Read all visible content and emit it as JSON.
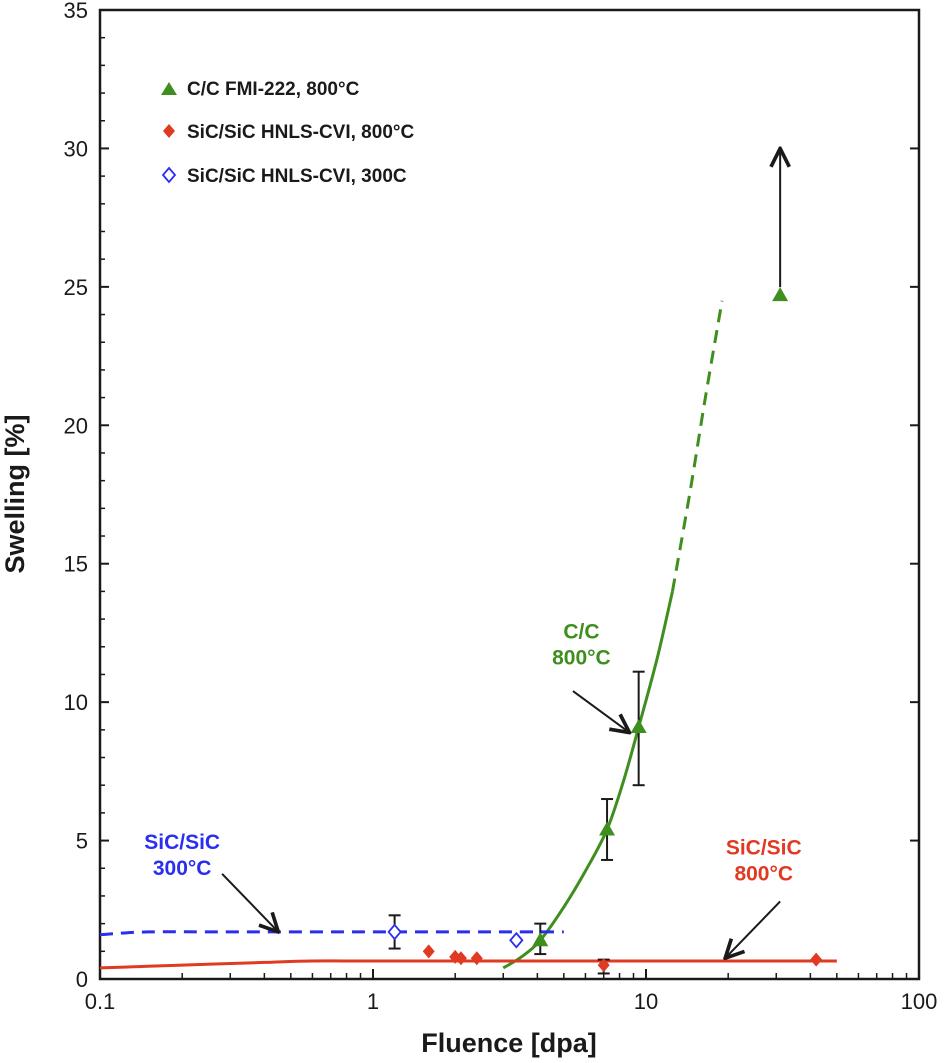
{
  "chart_data": {
    "type": "scatter",
    "x_scale": "log",
    "xlim": [
      0.1,
      100
    ],
    "ylim": [
      0,
      35
    ],
    "xlabel": "Fluence [dpa]",
    "ylabel": "Swelling [%]",
    "x_ticks": [
      0.1,
      1,
      10,
      100
    ],
    "x_tick_labels": [
      "0.1",
      "1",
      "10",
      "100"
    ],
    "y_ticks": [
      0,
      5,
      10,
      15,
      20,
      25,
      30,
      35
    ],
    "y_tick_labels": [
      "0",
      "5",
      "10",
      "15",
      "20",
      "25",
      "30",
      "35"
    ],
    "legend_position": "top-left",
    "colors": {
      "cc": "#3f8f1e",
      "sic800": "#e03a22",
      "sic300": "#2a2ef0",
      "ink": "#1a1a1a"
    },
    "series": [
      {
        "name": "C/C FMI-222, 800°C",
        "marker": "filled-triangle",
        "color": "#3f8f1e",
        "points": [
          {
            "x": 4.1,
            "y": 1.4,
            "err_low": 0.9,
            "err_high": 2.0
          },
          {
            "x": 7.2,
            "y": 5.4,
            "err_low": 4.3,
            "err_high": 6.5
          },
          {
            "x": 9.4,
            "y": 9.1,
            "err_low": 7.0,
            "err_high": 11.1
          },
          {
            "x": 31,
            "y": 24.7,
            "arrow_up_to": 30.0
          }
        ]
      },
      {
        "name": "SiC/SiC HNLS-CVI, 800°C",
        "marker": "filled-diamond",
        "color": "#e03a22",
        "points": [
          {
            "x": 1.6,
            "y": 1.0
          },
          {
            "x": 2.0,
            "y": 0.8
          },
          {
            "x": 2.1,
            "y": 0.75
          },
          {
            "x": 2.4,
            "y": 0.75
          },
          {
            "x": 7.0,
            "y": 0.5,
            "err_low": 0.2,
            "err_high": 0.7
          },
          {
            "x": 42,
            "y": 0.7
          }
        ]
      },
      {
        "name": "SiC/SiC HNLS-CVI, 300C",
        "marker": "open-diamond",
        "color": "#2a2ef0",
        "points": [
          {
            "x": 1.2,
            "y": 1.7,
            "err_low": 1.1,
            "err_high": 2.3
          },
          {
            "x": 3.35,
            "y": 1.4
          }
        ]
      }
    ],
    "trend_lines": [
      {
        "name": "C/C trend",
        "color": "#3f8f1e",
        "style": "solid",
        "x": [
          3.0,
          3.5,
          4.1,
          5.0,
          6.0,
          7.2,
          8.3,
          9.4,
          11.0,
          12.5
        ],
        "y": [
          0.4,
          0.8,
          1.4,
          2.6,
          3.9,
          5.4,
          7.2,
          9.1,
          11.6,
          14.0
        ]
      },
      {
        "name": "C/C extrapolation",
        "color": "#3f8f1e",
        "style": "dashed",
        "x": [
          12.5,
          14.5,
          16.5,
          19.0
        ],
        "y": [
          14.0,
          17.6,
          21.0,
          24.5
        ]
      },
      {
        "name": "SiC/SiC 300C trend",
        "color": "#2a2ef0",
        "style": "dashed",
        "x": [
          0.1,
          0.15,
          0.3,
          1.0,
          2.0,
          3.3,
          5.0
        ],
        "y": [
          1.6,
          1.7,
          1.7,
          1.7,
          1.7,
          1.7,
          1.7
        ]
      },
      {
        "name": "SiC/SiC 800C trend",
        "color": "#e03a22",
        "style": "solid",
        "x": [
          0.1,
          0.2,
          0.4,
          0.6,
          1,
          3,
          10,
          50
        ],
        "y": [
          0.4,
          0.5,
          0.6,
          0.65,
          0.65,
          0.65,
          0.65,
          0.65
        ]
      }
    ],
    "annotations": [
      {
        "lines": [
          "C/C",
          "800°C"
        ],
        "color": "#3f8f1e",
        "text_x": 5.8,
        "text_y": 12.3,
        "arrow_from": [
          5.4,
          10.4
        ],
        "arrow_to": [
          8.7,
          8.9
        ]
      },
      {
        "lines": [
          "SiC/SiC",
          "300°C"
        ],
        "color": "#2a2ef0",
        "text_x": 0.2,
        "text_y": 4.7,
        "arrow_from": [
          0.28,
          3.8
        ],
        "arrow_to": [
          0.45,
          1.7
        ]
      },
      {
        "lines": [
          "SiC/SiC",
          "800°C"
        ],
        "color": "#e03a22",
        "text_x": 27,
        "text_y": 4.5,
        "arrow_from": [
          31,
          2.8
        ],
        "arrow_to": [
          19.5,
          0.75
        ]
      }
    ]
  }
}
